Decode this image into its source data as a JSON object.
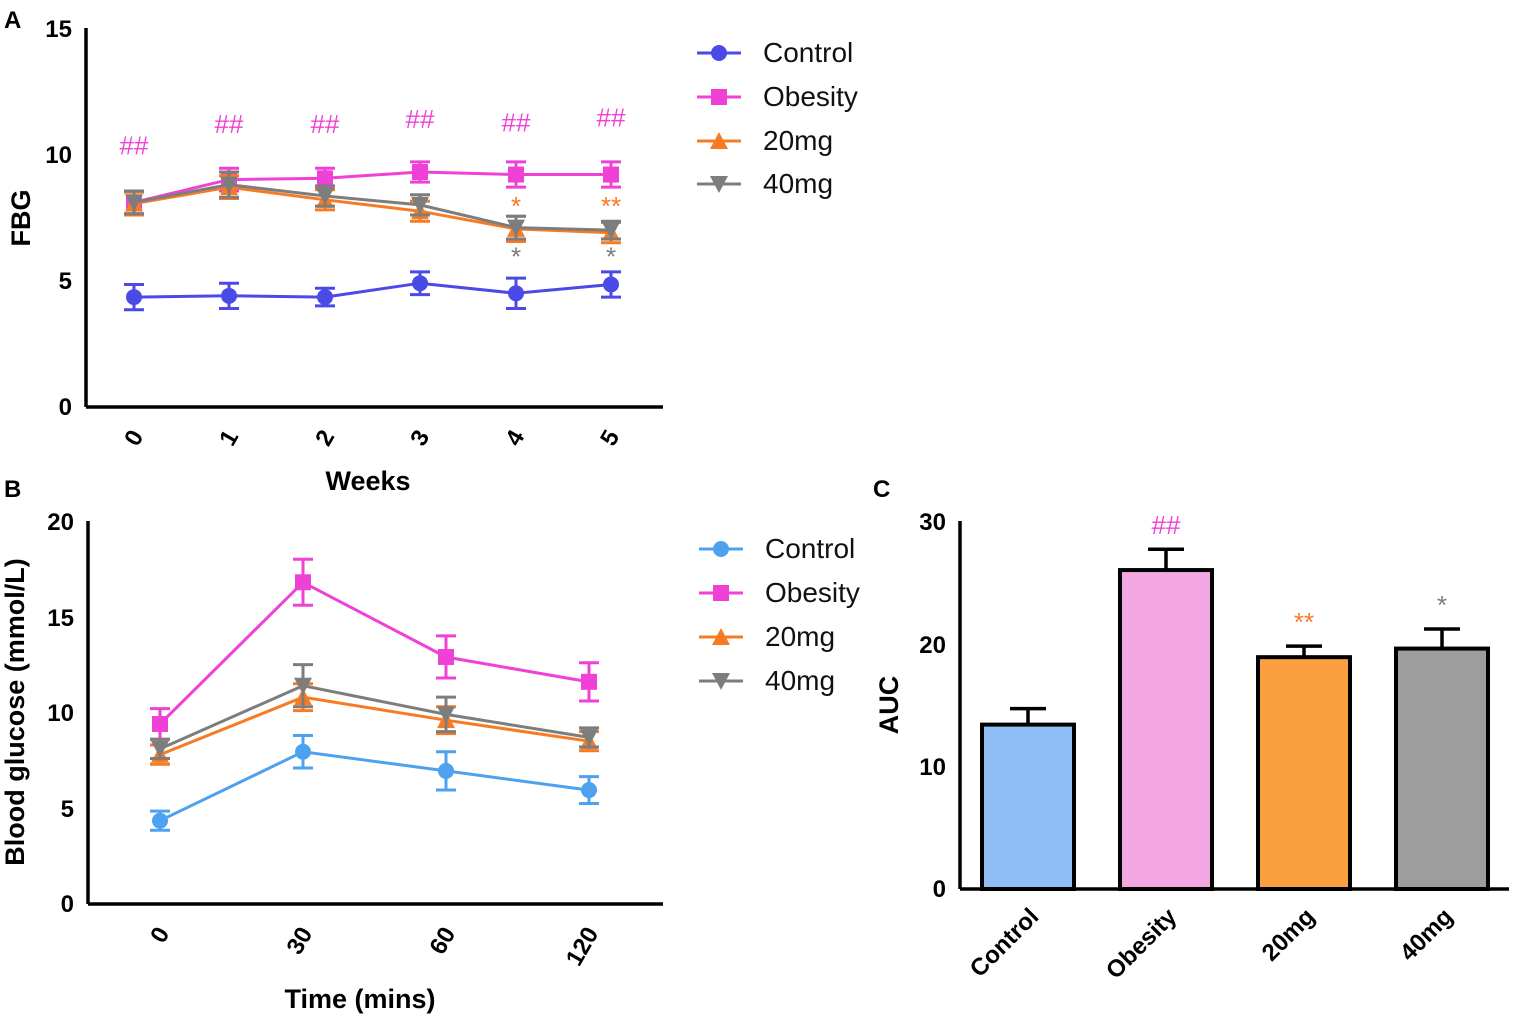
{
  "chart_data": [
    {
      "type": "line",
      "panel_label": "A",
      "xlabel": "Weeks",
      "ylabel": "FBG",
      "ylim": [
        0,
        15
      ],
      "yticks": [
        "0",
        "5",
        "10",
        "15"
      ],
      "categories": [
        "0",
        "1",
        "2",
        "3",
        "4",
        "5"
      ],
      "series": [
        {
          "name": "Control",
          "marker": "circle",
          "color": "#4a4ae8",
          "values": [
            4.35,
            4.4,
            4.35,
            4.9,
            4.5,
            4.85
          ],
          "errors": [
            0.5,
            0.5,
            0.35,
            0.45,
            0.6,
            0.5
          ]
        },
        {
          "name": "Obesity",
          "marker": "square",
          "color": "#f041d6",
          "values": [
            8.1,
            9.0,
            9.05,
            9.3,
            9.2,
            9.2
          ],
          "errors": [
            0.45,
            0.45,
            0.4,
            0.4,
            0.5,
            0.5
          ]
        },
        {
          "name": "20mg",
          "marker": "triangle-up",
          "color": "#f77b22",
          "values": [
            8.05,
            8.7,
            8.2,
            7.75,
            7.05,
            6.9
          ],
          "errors": [
            0.45,
            0.45,
            0.4,
            0.4,
            0.5,
            0.4
          ]
        },
        {
          "name": "40mg",
          "marker": "triangle-down",
          "color": "#7d7d7d",
          "values": [
            8.1,
            8.8,
            8.35,
            8.0,
            7.1,
            7.0
          ],
          "errors": [
            0.45,
            0.5,
            0.4,
            0.4,
            0.45,
            0.35
          ]
        }
      ],
      "annotations": [
        {
          "text": "##",
          "category": "0",
          "y": 10.0,
          "color": "#f041d6"
        },
        {
          "text": "##",
          "category": "1",
          "y": 10.85,
          "color": "#f041d6"
        },
        {
          "text": "##",
          "category": "2",
          "y": 10.85,
          "color": "#f041d6"
        },
        {
          "text": "##",
          "category": "3",
          "y": 11.05,
          "color": "#f041d6"
        },
        {
          "text": "##",
          "category": "4",
          "y": 10.9,
          "color": "#f041d6"
        },
        {
          "text": "##",
          "category": "5",
          "y": 11.1,
          "color": "#f041d6"
        },
        {
          "text": "*",
          "category": "4",
          "y": 7.6,
          "color": "#f77b22"
        },
        {
          "text": "**",
          "category": "5",
          "y": 7.6,
          "color": "#f77b22"
        },
        {
          "text": "*",
          "category": "4",
          "y": 5.6,
          "color": "#7d7d7d"
        },
        {
          "text": "*",
          "category": "5",
          "y": 5.6,
          "color": "#7d7d7d"
        }
      ]
    },
    {
      "type": "line",
      "panel_label": "B",
      "xlabel": "Time (mins)",
      "ylabel": "Blood glucose (mmol/L)",
      "ylim": [
        0,
        20
      ],
      "yticks": [
        "0",
        "5",
        "10",
        "15",
        "20"
      ],
      "categories": [
        "0",
        "30",
        "60",
        "120"
      ],
      "series": [
        {
          "name": "Control",
          "marker": "circle",
          "color": "#4da1ef",
          "values": [
            4.35,
            7.95,
            6.95,
            5.95
          ],
          "errors": [
            0.5,
            0.85,
            1.0,
            0.7
          ]
        },
        {
          "name": "Obesity",
          "marker": "square",
          "color": "#f041d6",
          "values": [
            9.4,
            16.8,
            12.9,
            11.6
          ],
          "errors": [
            0.8,
            1.2,
            1.1,
            1.0
          ]
        },
        {
          "name": "20mg",
          "marker": "triangle-up",
          "color": "#f77b22",
          "values": [
            7.8,
            10.8,
            9.6,
            8.5
          ],
          "errors": [
            0.5,
            0.7,
            0.7,
            0.5
          ]
        },
        {
          "name": "40mg",
          "marker": "triangle-down",
          "color": "#7d7d7d",
          "values": [
            8.1,
            11.4,
            9.9,
            8.7
          ],
          "errors": [
            0.5,
            1.1,
            0.9,
            0.5
          ]
        }
      ]
    },
    {
      "type": "bar",
      "panel_label": "C",
      "xlabel": "",
      "ylabel": "AUC",
      "ylim": [
        0,
        30
      ],
      "yticks": [
        "0",
        "10",
        "20",
        "30"
      ],
      "categories": [
        "Control",
        "Obesity",
        "20mg",
        "40mg"
      ],
      "values": [
        13.4,
        26.0,
        18.9,
        19.6
      ],
      "errors": [
        1.3,
        1.7,
        0.9,
        1.6
      ],
      "colors": [
        "#8fbff5",
        "#f4a8e3",
        "#fba03e",
        "#9d9d9d"
      ],
      "annotations": [
        {
          "text": "##",
          "category": "Obesity",
          "color": "#f041d6"
        },
        {
          "text": "**",
          "category": "20mg",
          "color": "#f77b22"
        },
        {
          "text": "*",
          "category": "40mg",
          "color": "#7d7d7d"
        }
      ]
    }
  ]
}
